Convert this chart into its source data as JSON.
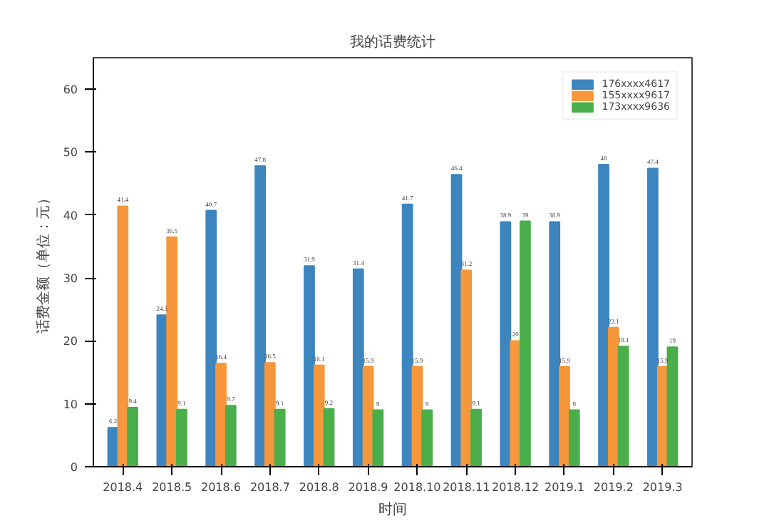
{
  "chart_data": {
    "type": "bar",
    "title": "我的话费统计",
    "xlabel": "时间",
    "ylabel": "话费金额（单位：元）",
    "categories": [
      "2018.4",
      "2018.5",
      "2018.6",
      "2018.7",
      "2018.8",
      "2018.9",
      "2018.10",
      "2018.11",
      "2018.12",
      "2019.1",
      "2019.2",
      "2019.3"
    ],
    "series": [
      {
        "name": "176xxxx4617",
        "color": "#3c85bf",
        "values": [
          6.2,
          24.1,
          40.7,
          47.8,
          31.9,
          31.4,
          41.7,
          46.4,
          38.9,
          38.9,
          48.0,
          47.4
        ],
        "value_labels": [
          "6.2",
          "24.1",
          "40.7",
          "47.8",
          "31.9",
          "31.4",
          "41.7",
          "46.4",
          "38.9",
          "38.9",
          "48",
          "47.4"
        ]
      },
      {
        "name": "155xxxx9617",
        "color": "#f5973a",
        "values": [
          41.4,
          36.5,
          16.4,
          16.5,
          16.1,
          15.9,
          15.9,
          31.2,
          20.0,
          15.9,
          22.1,
          15.9
        ],
        "value_labels": [
          "41.4",
          "36.5",
          "16.4",
          "16.5",
          "16.1",
          "15.9",
          "15.9",
          "31.2",
          "20",
          "15.9",
          "22.1",
          "15.9"
        ]
      },
      {
        "name": "173xxxx9636",
        "color": "#4aae4a",
        "values": [
          9.4,
          9.1,
          9.7,
          9.1,
          9.2,
          9.0,
          9.0,
          9.1,
          39.0,
          9.0,
          19.1,
          19.0
        ],
        "value_labels": [
          "9.4",
          "9.1",
          "9.7",
          "9.1",
          "9.2",
          "9",
          "9",
          "9.1",
          "39",
          "9",
          "19.1",
          "19"
        ]
      }
    ],
    "ylim": [
      0,
      65
    ],
    "yticks": [
      0,
      10,
      20,
      30,
      40,
      50,
      60
    ],
    "grid": false,
    "legend": "top right"
  }
}
